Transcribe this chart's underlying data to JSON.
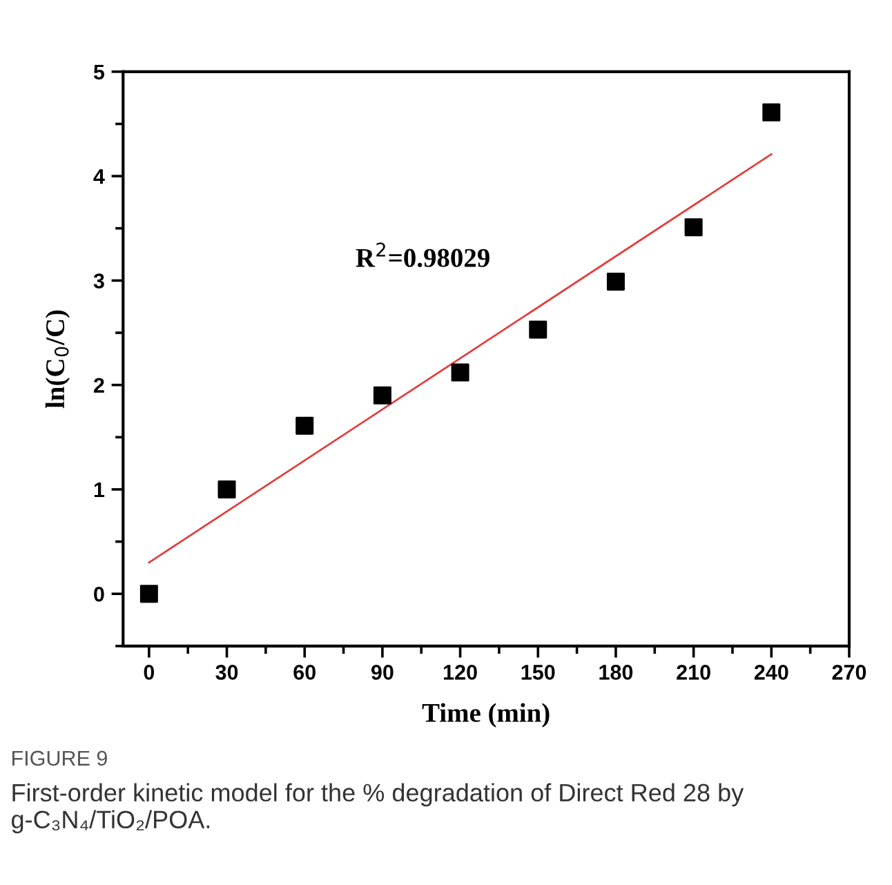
{
  "chart_data": {
    "type": "scatter",
    "title": "FIGURE 9",
    "subtitle": "First-order kinetic model for the % degradation of Direct Red 28 by g-C₃N₄/TiO₂/POA.",
    "xlabel": "Time (min)",
    "ylabel": "ln(C$_{0}$/C)",
    "annotations": [
      "R$^{2}$=0.98029"
    ],
    "series": [
      {
        "color": "#000000",
        "marker": "square",
        "x": [
          0,
          30,
          60,
          90,
          120,
          150,
          180,
          210,
          240
        ],
        "values": [
          0,
          1.0,
          1.61,
          1.9,
          2.12,
          2.53,
          2.99,
          3.51,
          4.61
        ]
      },
      {
        "type": "line",
        "color": "#e04040",
        "marker": "none",
        "line_style": "solid",
        "x": [
          0,
          240
        ],
        "values": [
          0.3,
          4.21
        ]
      }
    ],
    "xlim": [
      -10,
      270
    ],
    "xticks": [
      0,
      30,
      60,
      90,
      120,
      150,
      180,
      210,
      240,
      270
    ],
    "ylim": [
      -0.5,
      5
    ],
    "yticks": [
      0,
      1,
      2,
      3,
      4,
      5
    ],
    "grid": false,
    "legend": false
  }
}
